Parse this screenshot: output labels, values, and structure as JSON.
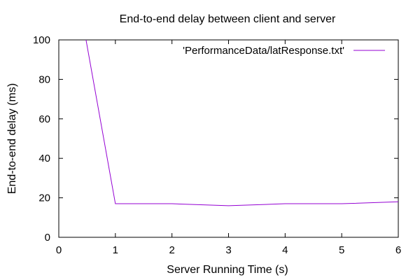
{
  "chart_data": {
    "type": "line",
    "title": "End-to-end delay between client and server",
    "xlabel": "Server Running Time (s)",
    "ylabel": "End-to-end delay (ms)",
    "xlim": [
      0,
      6
    ],
    "ylim": [
      0,
      100
    ],
    "xticks": [
      0,
      1,
      2,
      3,
      4,
      5,
      6
    ],
    "yticks": [
      0,
      20,
      40,
      60,
      80,
      100
    ],
    "grid": false,
    "legend_position": "top-right",
    "series": [
      {
        "name": "'PerformanceData/latResponse.txt'",
        "color": "#9400d3",
        "x": [
          0,
          1,
          2,
          3,
          4,
          5,
          6
        ],
        "y": [
          177,
          17,
          17,
          16,
          17,
          17,
          18
        ]
      }
    ]
  }
}
